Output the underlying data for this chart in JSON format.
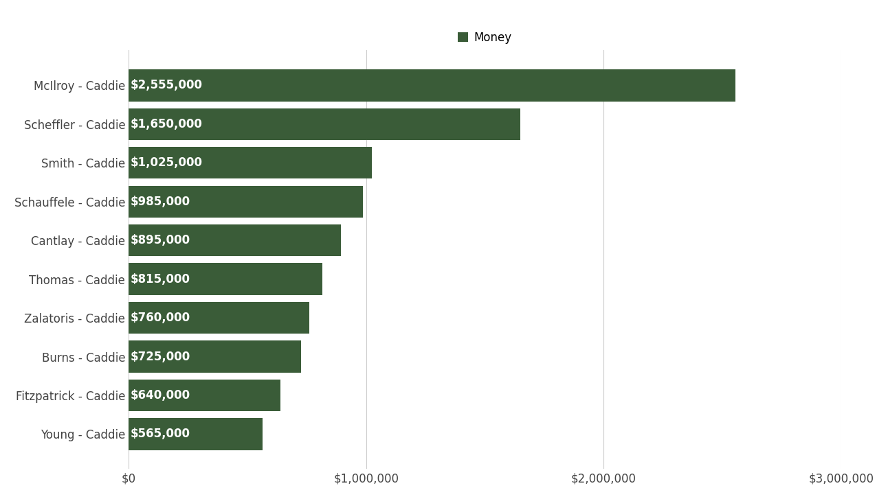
{
  "categories": [
    "Young - Caddie",
    "Fitzpatrick - Caddie",
    "Burns - Caddie",
    "Zalatoris - Caddie",
    "Thomas - Caddie",
    "Cantlay - Caddie",
    "Schauffele - Caddie",
    "Smith - Caddie",
    "Scheffler - Caddie",
    "McIlroy - Caddie"
  ],
  "values": [
    565000,
    640000,
    725000,
    760000,
    815000,
    895000,
    985000,
    1025000,
    1650000,
    2555000
  ],
  "labels": [
    "$565,000",
    "$640,000",
    "$725,000",
    "$760,000",
    "$815,000",
    "$895,000",
    "$985,000",
    "$1,025,000",
    "$1,650,000",
    "$2,555,000"
  ],
  "bar_color": "#3a5c38",
  "background_color": "#ffffff",
  "legend_label": "Money",
  "legend_marker_color": "#3a5c38",
  "xlim": [
    0,
    3000000
  ],
  "xticks": [
    0,
    1000000,
    2000000,
    3000000
  ],
  "xticklabels": [
    "$0",
    "$1,000,000",
    "$2,000,000",
    "$3,000,000"
  ],
  "tick_fontsize": 12,
  "legend_fontsize": 12,
  "bar_label_fontsize": 12,
  "bar_label_color": "#ffffff",
  "ytick_color": "#444444",
  "xtick_color": "#444444",
  "grid_color": "#cccccc",
  "bar_height": 0.82
}
